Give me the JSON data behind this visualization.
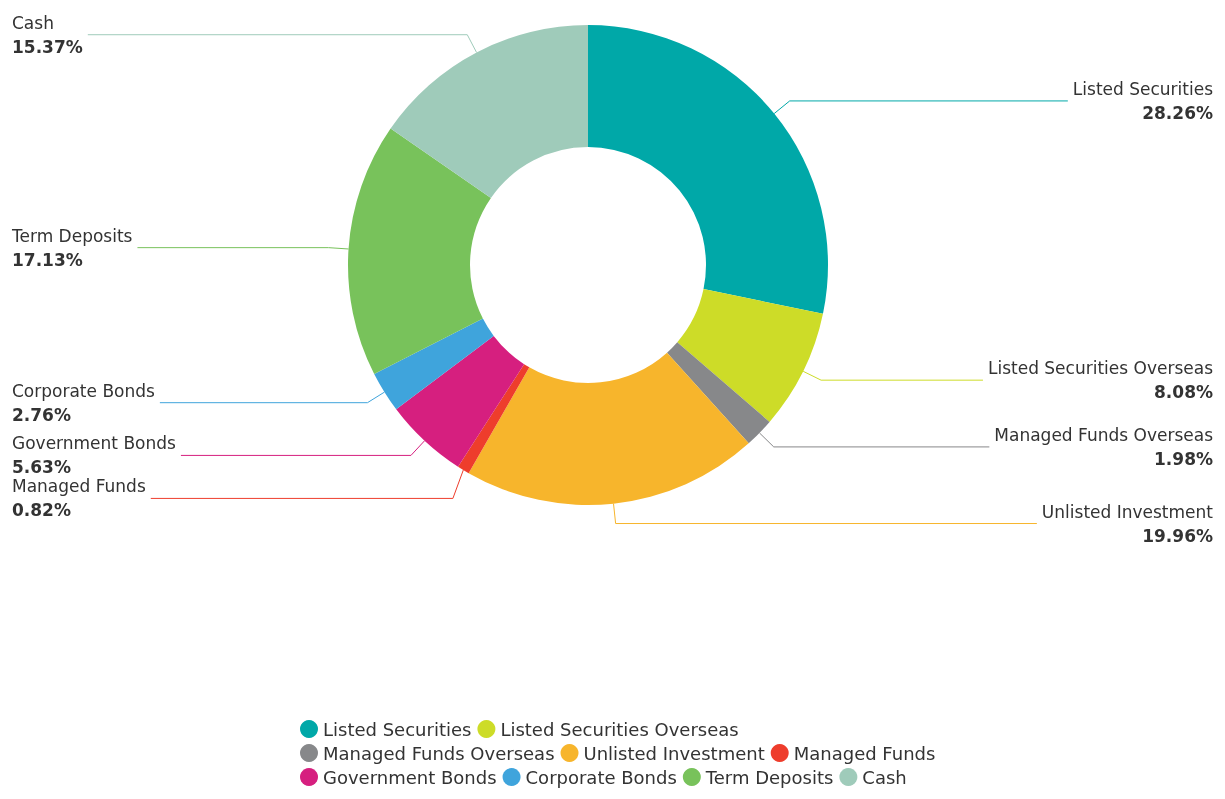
{
  "chart_data": {
    "type": "donut",
    "categories": [
      "Listed Securities",
      "Listed Securities Overseas",
      "Managed Funds Overseas",
      "Unlisted Investment",
      "Managed Funds",
      "Government Bonds",
      "Corporate Bonds",
      "Term Deposits",
      "Cash"
    ],
    "values": [
      28.26,
      8.08,
      1.98,
      19.96,
      0.82,
      5.63,
      2.76,
      17.13,
      15.37
    ],
    "value_labels": [
      "28.26%",
      "8.08%",
      "1.98%",
      "19.96%",
      "0.82%",
      "5.63%",
      "2.76%",
      "17.13%",
      "15.37%"
    ],
    "colors": [
      "#00a8a8",
      "#cddc28",
      "#87888a",
      "#f7b52c",
      "#ee3d2c",
      "#d61f7f",
      "#3fa4dc",
      "#78c25b",
      "#9fcbba"
    ],
    "legend": "bottom"
  }
}
